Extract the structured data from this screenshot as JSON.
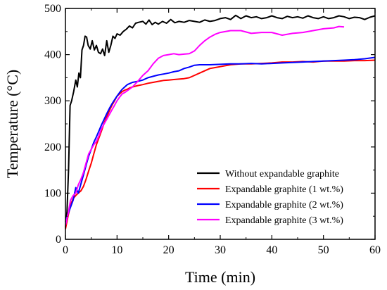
{
  "chart_data": {
    "type": "line",
    "xlabel": "Time (min)",
    "ylabel": "Temperature (°C)",
    "xlim": [
      0,
      60
    ],
    "ylim": [
      0,
      500
    ],
    "xticks": [
      0,
      10,
      20,
      30,
      40,
      50,
      60
    ],
    "yticks": [
      0,
      100,
      200,
      300,
      400,
      500
    ],
    "grid": false,
    "legend_position": "lower-right",
    "series": [
      {
        "name": "Without expandable graphite",
        "color": "#000000",
        "x": [
          0,
          0.3,
          0.6,
          0.9,
          1.2,
          1.6,
          2.0,
          2.3,
          2.6,
          2.9,
          3.2,
          3.5,
          3.8,
          4.1,
          4.4,
          4.8,
          5.2,
          5.6,
          6.0,
          6.4,
          6.8,
          7.2,
          7.6,
          8.0,
          8.4,
          8.8,
          9.2,
          9.6,
          10.0,
          10.6,
          11.2,
          11.8,
          12.4,
          13.0,
          13.6,
          14.2,
          15.0,
          15.6,
          16.2,
          16.8,
          17.4,
          18.0,
          18.8,
          19.6,
          20.4,
          21.2,
          22.0,
          23.0,
          24.0,
          25.0,
          26.0,
          27.0,
          28.0,
          29.0,
          30.0,
          31.0,
          32.0,
          33.0,
          34.0,
          35.0,
          36.0,
          37.0,
          38.0,
          39.0,
          40.0,
          41.0,
          42.0,
          43.0,
          44.0,
          45.0,
          46.0,
          47.0,
          48.0,
          49.0,
          50.0,
          51.0,
          52.0,
          53.0,
          54.0,
          55.0,
          56.0,
          57.0,
          58.0,
          59.0,
          60.0
        ],
        "y": [
          25,
          60,
          150,
          290,
          300,
          320,
          345,
          330,
          360,
          350,
          410,
          420,
          440,
          438,
          420,
          412,
          430,
          410,
          420,
          405,
          402,
          412,
          398,
          430,
          405,
          420,
          440,
          435,
          445,
          442,
          450,
          455,
          462,
          458,
          468,
          470,
          472,
          466,
          475,
          465,
          470,
          466,
          472,
          468,
          476,
          469,
          472,
          470,
          474,
          472,
          470,
          475,
          472,
          474,
          478,
          480,
          476,
          485,
          478,
          484,
          480,
          482,
          478,
          480,
          484,
          480,
          478,
          483,
          480,
          482,
          479,
          484,
          480,
          478,
          482,
          478,
          480,
          484,
          482,
          478,
          481,
          480,
          476,
          481,
          484
        ]
      },
      {
        "name": "Expandable graphite (1 wt.%)",
        "color": "#ff0000",
        "x": [
          0,
          0.5,
          1,
          1.5,
          2,
          2.5,
          3,
          3.5,
          4,
          4.5,
          5,
          5.5,
          6,
          6.5,
          7,
          7.5,
          8,
          8.5,
          9,
          9.5,
          10,
          10.5,
          11,
          11.5,
          12,
          12.5,
          13,
          14,
          15,
          16,
          17,
          18,
          19,
          20,
          21,
          22,
          23,
          24,
          25,
          26,
          27,
          28,
          29,
          30,
          32,
          34,
          36,
          38,
          40,
          42,
          44,
          46,
          48,
          50,
          52,
          54,
          56,
          58,
          60
        ],
        "y": [
          22,
          50,
          75,
          88,
          95,
          100,
          105,
          115,
          130,
          148,
          165,
          185,
          205,
          220,
          235,
          252,
          265,
          278,
          290,
          300,
          310,
          315,
          320,
          323,
          325,
          328,
          330,
          333,
          335,
          338,
          340,
          342,
          344,
          345,
          346,
          347,
          348,
          350,
          355,
          360,
          365,
          370,
          372,
          374,
          378,
          380,
          380,
          381,
          382,
          384,
          384,
          385,
          384,
          386,
          386,
          386,
          387,
          387,
          388
        ]
      },
      {
        "name": "Expandable graphite (2 wt.%)",
        "color": "#0000ff",
        "x": [
          0,
          0.5,
          1,
          1.5,
          2,
          2.5,
          3,
          3.5,
          4,
          4.5,
          5,
          5.5,
          6,
          6.5,
          7,
          7.5,
          8,
          8.5,
          9,
          9.5,
          10,
          10.5,
          11,
          11.5,
          12,
          13,
          14,
          15,
          16,
          17,
          18,
          19,
          20,
          21,
          22,
          23,
          24,
          25,
          26,
          28,
          30,
          32,
          34,
          36,
          38,
          40,
          42,
          44,
          46,
          48,
          50,
          52,
          54,
          56,
          58,
          60
        ],
        "y": [
          38,
          55,
          70,
          85,
          112,
          100,
          120,
          140,
          160,
          180,
          195,
          210,
          222,
          235,
          248,
          260,
          272,
          283,
          293,
          302,
          310,
          318,
          325,
          330,
          335,
          340,
          342,
          345,
          350,
          353,
          356,
          358,
          360,
          363,
          365,
          370,
          373,
          377,
          378,
          378,
          379,
          380,
          380,
          381,
          380,
          381,
          382,
          383,
          384,
          385,
          386,
          387,
          388,
          389,
          391,
          394
        ]
      },
      {
        "name": "Expandable graphite (3 wt.%)",
        "color": "#ff00ff",
        "x": [
          0,
          0.5,
          1,
          1.5,
          2,
          2.5,
          3,
          3.5,
          4,
          4.5,
          5,
          5.5,
          6,
          6.5,
          7,
          7.5,
          8,
          8.5,
          9,
          9.5,
          10,
          10.5,
          11,
          11.5,
          12,
          13,
          14,
          15,
          16,
          17,
          18,
          19,
          20,
          21,
          22,
          23,
          24,
          25,
          26,
          27,
          28,
          29,
          30,
          32,
          34,
          36,
          38,
          40,
          42,
          44,
          46,
          48,
          50,
          52,
          53,
          54
        ],
        "y": [
          30,
          55,
          85,
          95,
          100,
          118,
          130,
          145,
          165,
          185,
          195,
          205,
          212,
          225,
          240,
          250,
          260,
          270,
          280,
          290,
          300,
          308,
          315,
          318,
          322,
          330,
          342,
          355,
          365,
          380,
          392,
          398,
          400,
          402,
          400,
          401,
          402,
          408,
          420,
          430,
          438,
          444,
          448,
          452,
          452,
          446,
          448,
          448,
          442,
          446,
          448,
          452,
          456,
          458,
          461,
          460
        ]
      }
    ]
  }
}
